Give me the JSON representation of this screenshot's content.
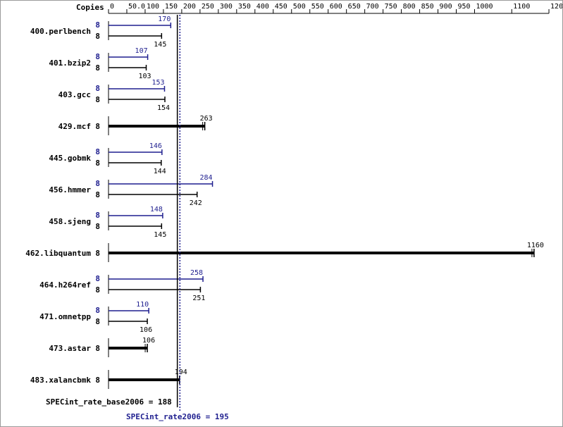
{
  "chart_data": {
    "type": "bar",
    "orientation": "horizontal",
    "axis_header": "Copies",
    "ticks": [
      "0",
      "50.0",
      "100",
      "150",
      "200",
      "250",
      "300",
      "350",
      "400",
      "450",
      "500",
      "550",
      "600",
      "650",
      "700",
      "750",
      "800",
      "850",
      "900",
      "950",
      "1000",
      "1100",
      "1200"
    ],
    "series": [
      {
        "key": "peak",
        "color": "#1f1f8f"
      },
      {
        "key": "base",
        "color": "#000000"
      }
    ],
    "benchmarks": [
      {
        "name": "400.perlbench",
        "peak": {
          "copies": "8",
          "value": 170,
          "label": "170"
        },
        "base": {
          "copies": "8",
          "value": 145,
          "label": "145"
        }
      },
      {
        "name": "401.bzip2",
        "peak": {
          "copies": "8",
          "value": 107,
          "label": "107"
        },
        "base": {
          "copies": "8",
          "value": 103,
          "label": "103"
        }
      },
      {
        "name": "403.gcc",
        "peak": {
          "copies": "8",
          "value": 153,
          "label": "153"
        },
        "base": {
          "copies": "8",
          "value": 154,
          "label": "154"
        }
      },
      {
        "name": "429.mcf",
        "base": {
          "copies": "8",
          "value": 263,
          "label": "263"
        }
      },
      {
        "name": "445.gobmk",
        "peak": {
          "copies": "8",
          "value": 146,
          "label": "146"
        },
        "base": {
          "copies": "8",
          "value": 144,
          "label": "144"
        }
      },
      {
        "name": "456.hmmer",
        "peak": {
          "copies": "8",
          "value": 284,
          "label": "284"
        },
        "base": {
          "copies": "8",
          "value": 242,
          "label": "242"
        }
      },
      {
        "name": "458.sjeng",
        "peak": {
          "copies": "8",
          "value": 148,
          "label": "148"
        },
        "base": {
          "copies": "8",
          "value": 145,
          "label": "145"
        }
      },
      {
        "name": "462.libquantum",
        "base": {
          "copies": "8",
          "value": 1160,
          "label": "1160"
        }
      },
      {
        "name": "464.h264ref",
        "peak": {
          "copies": "8",
          "value": 258,
          "label": "258"
        },
        "base": {
          "copies": "8",
          "value": 251,
          "label": "251"
        }
      },
      {
        "name": "471.omnetpp",
        "peak": {
          "copies": "8",
          "value": 110,
          "label": "110"
        },
        "base": {
          "copies": "8",
          "value": 106,
          "label": "106"
        }
      },
      {
        "name": "473.astar",
        "base": {
          "copies": "8",
          "value": 106,
          "label": "106"
        }
      },
      {
        "name": "483.xalancbmk",
        "base": {
          "copies": "8",
          "value": 194,
          "label": "194"
        }
      }
    ],
    "summary_base": {
      "label": "SPECint_rate_base2006 = 188",
      "value": 188
    },
    "summary_peak": {
      "label": "SPECint_rate2006 = 195",
      "value": 195
    }
  }
}
